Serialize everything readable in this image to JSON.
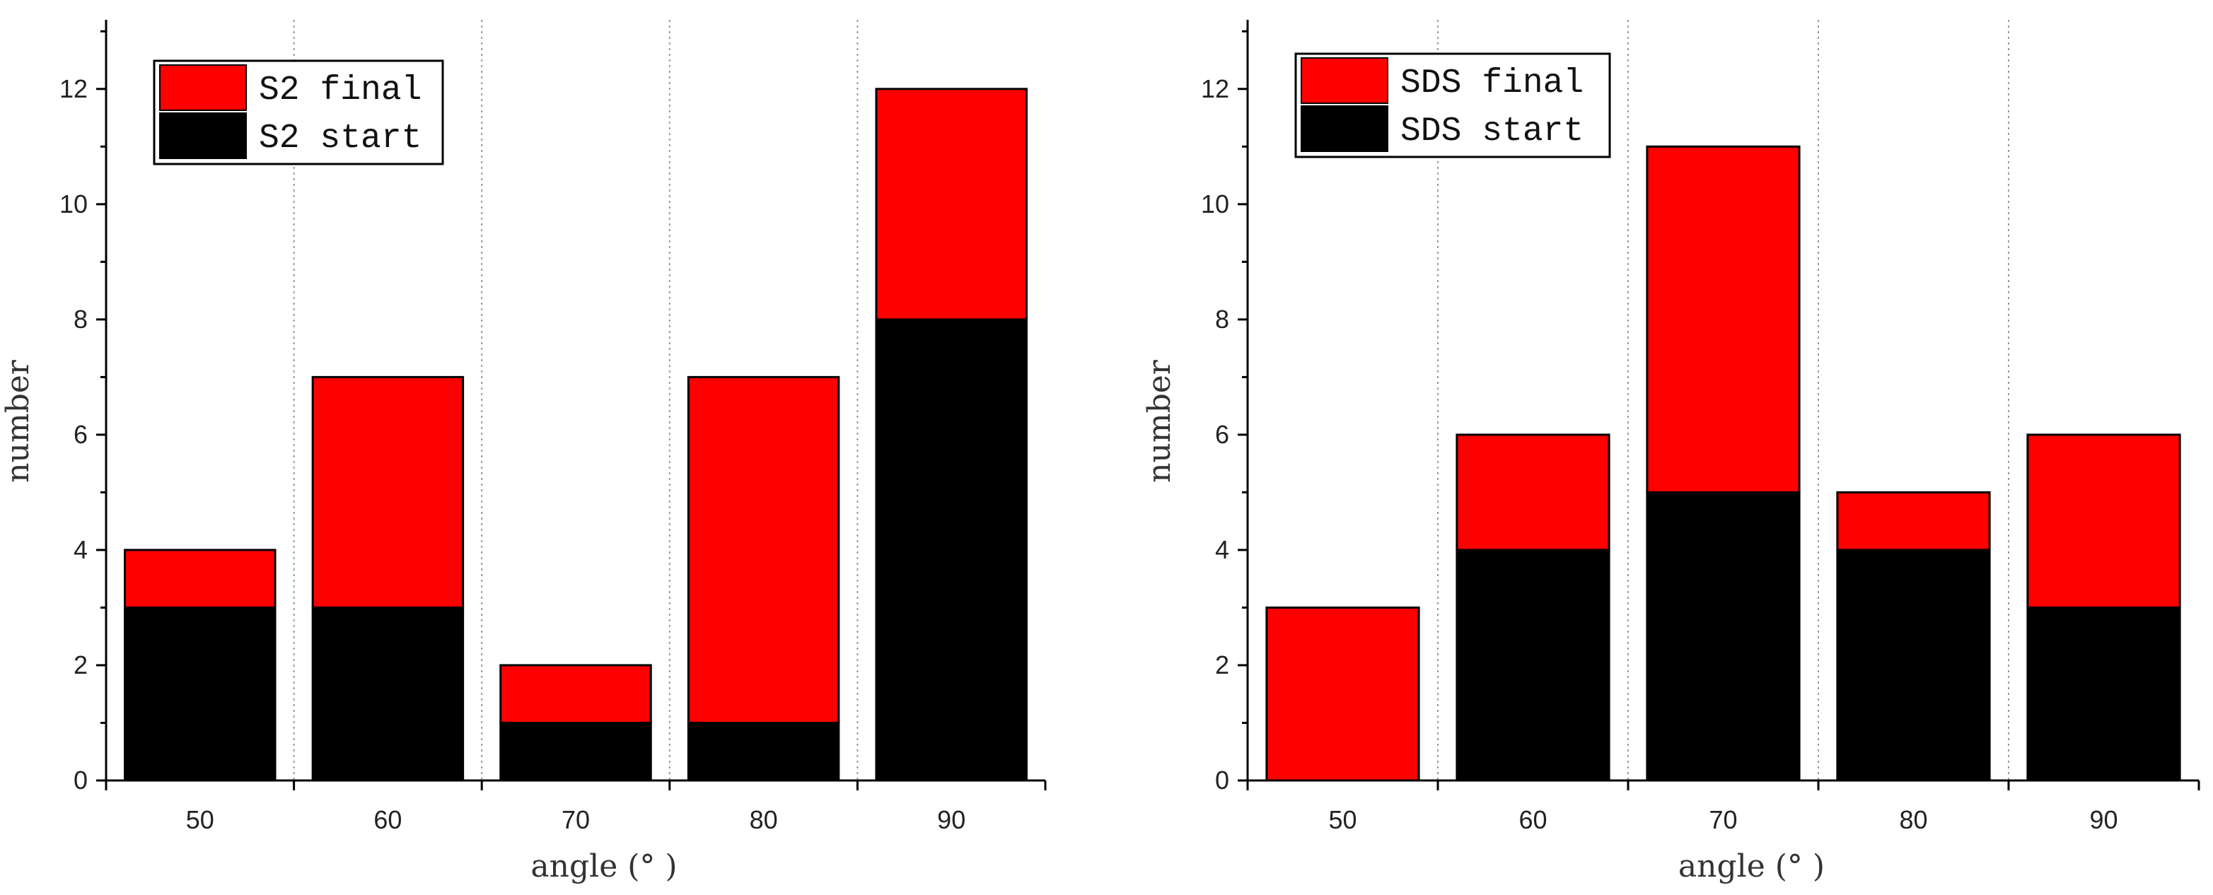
{
  "chart_data": [
    {
      "type": "bar",
      "stacked": true,
      "categories": [
        "50",
        "60",
        "70",
        "80",
        "90"
      ],
      "series": [
        {
          "name": "S2 start",
          "values": [
            3,
            3,
            1,
            1,
            8
          ],
          "color": "#000000"
        },
        {
          "name": "S2 final",
          "values": [
            1,
            4,
            1,
            6,
            4
          ],
          "color": "#ff0000"
        }
      ],
      "totals": [
        4,
        7,
        2,
        7,
        12
      ],
      "xlabel": "angle (° )",
      "ylabel": "number",
      "ylim": [
        0,
        13.2
      ],
      "yticks": [
        0,
        2,
        4,
        6,
        8,
        10,
        12
      ],
      "grid": "vertical dotted separators between categories",
      "legend": "top-left"
    },
    {
      "type": "bar",
      "stacked": true,
      "categories": [
        "50",
        "60",
        "70",
        "80",
        "90"
      ],
      "series": [
        {
          "name": "SDS start",
          "values": [
            0,
            4,
            5,
            4,
            3
          ],
          "color": "#000000"
        },
        {
          "name": "SDS final",
          "values": [
            3,
            2,
            6,
            1,
            3
          ],
          "color": "#ff0000"
        }
      ],
      "totals": [
        3,
        6,
        11,
        5,
        6
      ],
      "xlabel": "angle (° )",
      "ylabel": "number",
      "ylim": [
        0,
        13.2
      ],
      "yticks": [
        0,
        2,
        4,
        6,
        8,
        10,
        12
      ],
      "grid": "vertical dotted separators between categories",
      "legend": "top-left"
    }
  ]
}
